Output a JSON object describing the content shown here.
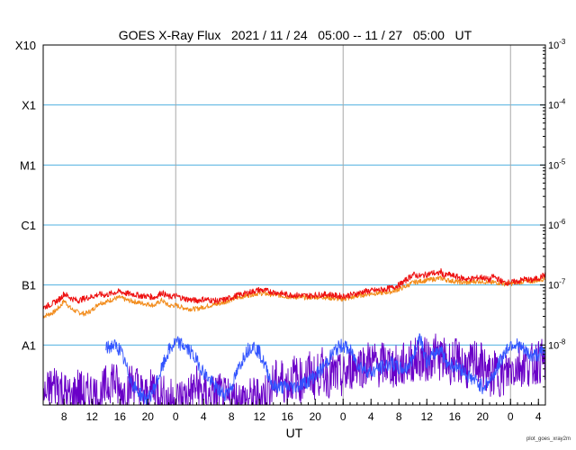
{
  "chart_data": {
    "type": "line",
    "title": "GOES X-Ray Flux   2021 / 11 / 24   05:00 -- 11 / 27   05:00   UT",
    "xlabel": "UT",
    "footer": "plot_goes_xray2m",
    "y_scale": "log",
    "ylim": [
      1e-09,
      0.001
    ],
    "xlim_hours": [
      0,
      72
    ],
    "grid": true,
    "flare_classes": [
      {
        "label": "X10",
        "value": 0.001
      },
      {
        "label": "X1",
        "value": 0.0001
      },
      {
        "label": "M1",
        "value": 1e-05
      },
      {
        "label": "C1",
        "value": 1e-06
      },
      {
        "label": "B1",
        "value": 1e-07
      },
      {
        "label": "A1",
        "value": 1e-08
      }
    ],
    "right_ticks": [
      {
        "base": "10",
        "exp": "-3",
        "value": 0.001
      },
      {
        "base": "10",
        "exp": "-4",
        "value": 0.0001
      },
      {
        "base": "10",
        "exp": "-5",
        "value": 1e-05
      },
      {
        "base": "10",
        "exp": "-6",
        "value": 1e-06
      },
      {
        "base": "10",
        "exp": "-7",
        "value": 1e-07
      },
      {
        "base": "10",
        "exp": "-8",
        "value": 1e-08
      }
    ],
    "x_ticks": [
      {
        "label": "8",
        "t": 3
      },
      {
        "label": "12",
        "t": 7
      },
      {
        "label": "16",
        "t": 11
      },
      {
        "label": "20",
        "t": 15
      },
      {
        "label": "0",
        "t": 19
      },
      {
        "label": "4",
        "t": 23
      },
      {
        "label": "8",
        "t": 27
      },
      {
        "label": "12",
        "t": 31
      },
      {
        "label": "16",
        "t": 35
      },
      {
        "label": "20",
        "t": 39
      },
      {
        "label": "0",
        "t": 43
      },
      {
        "label": "4",
        "t": 47
      },
      {
        "label": "8",
        "t": 51
      },
      {
        "label": "12",
        "t": 55
      },
      {
        "label": "16",
        "t": 59
      },
      {
        "label": "20",
        "t": 63
      },
      {
        "label": "0",
        "t": 67
      },
      {
        "label": "4",
        "t": 71
      }
    ],
    "day_boundaries": [
      19,
      43,
      67
    ],
    "colors": {
      "long_red": "#ee1111",
      "long_orange": "#f28c1c",
      "short_blue": "#3355ff",
      "short_purple": "#6a00c8",
      "grid_blue": "#4fb1e0",
      "day_line": "#a8a8a8"
    },
    "series": [
      {
        "color": "#ee1111",
        "points": [
          [
            0,
            4.2e-08
          ],
          [
            1.5,
            5e-08
          ],
          [
            2.5,
            6e-08
          ],
          [
            3,
            7.2e-08
          ],
          [
            4,
            6e-08
          ],
          [
            5,
            5.5e-08
          ],
          [
            6,
            6e-08
          ],
          [
            7,
            6.4e-08
          ],
          [
            8,
            7e-08
          ],
          [
            9,
            6.8e-08
          ],
          [
            10,
            7.4e-08
          ],
          [
            11,
            7.8e-08
          ],
          [
            12,
            7.2e-08
          ],
          [
            13,
            7e-08
          ],
          [
            14,
            6.6e-08
          ],
          [
            15,
            6.5e-08
          ],
          [
            16,
            6.2e-08
          ],
          [
            17,
            7.5e-08
          ],
          [
            18,
            6.3e-08
          ],
          [
            19,
            6.6e-08
          ],
          [
            20,
            6e-08
          ],
          [
            21,
            5.7e-08
          ],
          [
            22,
            5.5e-08
          ],
          [
            23,
            5.8e-08
          ],
          [
            24,
            5.6e-08
          ],
          [
            25,
            5.4e-08
          ],
          [
            26,
            5.7e-08
          ],
          [
            27,
            6.2e-08
          ],
          [
            28,
            6.8e-08
          ],
          [
            29,
            7.2e-08
          ],
          [
            30,
            7.8e-08
          ],
          [
            31,
            8.3e-08
          ],
          [
            32,
            8e-08
          ],
          [
            33,
            7.6e-08
          ],
          [
            34,
            7.3e-08
          ],
          [
            35,
            6.9e-08
          ],
          [
            36,
            6.8e-08
          ],
          [
            37,
            6.7e-08
          ],
          [
            38,
            6.6e-08
          ],
          [
            39,
            6.8e-08
          ],
          [
            40,
            6.9e-08
          ],
          [
            41,
            7e-08
          ],
          [
            42,
            6.6e-08
          ],
          [
            43,
            6.5e-08
          ],
          [
            44,
            6.8e-08
          ],
          [
            45,
            7.2e-08
          ],
          [
            46,
            7.8e-08
          ],
          [
            47,
            8e-08
          ],
          [
            48,
            8.2e-08
          ],
          [
            49,
            8.5e-08
          ],
          [
            50,
            9e-08
          ],
          [
            51,
            1e-07
          ],
          [
            52,
            1.2e-07
          ],
          [
            53,
            1.5e-07
          ],
          [
            54,
            1.4e-07
          ],
          [
            55,
            1.5e-07
          ],
          [
            56,
            1.6e-07
          ],
          [
            56.5,
            1.5e-07
          ],
          [
            57,
            1.7e-07
          ],
          [
            57.5,
            1.4e-07
          ],
          [
            58,
            1.5e-07
          ],
          [
            59,
            1.4e-07
          ],
          [
            60,
            1.3e-07
          ],
          [
            61,
            1.25e-07
          ],
          [
            62,
            1.3e-07
          ],
          [
            63,
            1.35e-07
          ],
          [
            64,
            1.2e-07
          ],
          [
            64.5,
            1.4e-07
          ],
          [
            65,
            1.3e-07
          ],
          [
            66,
            1.1e-07
          ],
          [
            67,
            1.1e-07
          ],
          [
            68,
            1.15e-07
          ],
          [
            69,
            1.25e-07
          ],
          [
            70,
            1.2e-07
          ],
          [
            71,
            1.3e-07
          ],
          [
            72,
            1.5e-07
          ]
        ]
      },
      {
        "color": "#f28c1c",
        "points": [
          [
            0,
            3e-08
          ],
          [
            1.5,
            3.5e-08
          ],
          [
            2.5,
            4.5e-08
          ],
          [
            3,
            5.5e-08
          ],
          [
            4,
            4e-08
          ],
          [
            5,
            3.5e-08
          ],
          [
            6,
            3.3e-08
          ],
          [
            7,
            3.8e-08
          ],
          [
            8,
            5e-08
          ],
          [
            9,
            5.2e-08
          ],
          [
            10,
            5.8e-08
          ],
          [
            11,
            6.2e-08
          ],
          [
            12,
            5.6e-08
          ],
          [
            13,
            5.3e-08
          ],
          [
            14,
            5e-08
          ],
          [
            15,
            4.8e-08
          ],
          [
            16,
            4.6e-08
          ],
          [
            17,
            5.6e-08
          ],
          [
            18,
            4.5e-08
          ],
          [
            19,
            4.6e-08
          ],
          [
            20,
            4.2e-08
          ],
          [
            21,
            4e-08
          ],
          [
            22,
            4e-08
          ],
          [
            23,
            4.3e-08
          ],
          [
            24,
            4.6e-08
          ],
          [
            25,
            4.8e-08
          ],
          [
            26,
            5.2e-08
          ],
          [
            27,
            5.7e-08
          ],
          [
            28,
            6.2e-08
          ],
          [
            29,
            6.6e-08
          ],
          [
            30,
            7e-08
          ],
          [
            31,
            7.3e-08
          ],
          [
            32,
            7.1e-08
          ],
          [
            33,
            6.9e-08
          ],
          [
            34,
            6.7e-08
          ],
          [
            35,
            6.4e-08
          ],
          [
            36,
            6.3e-08
          ],
          [
            37,
            6.2e-08
          ],
          [
            38,
            6.2e-08
          ],
          [
            39,
            6.3e-08
          ],
          [
            40,
            6.3e-08
          ],
          [
            41,
            6.1e-08
          ],
          [
            42,
            5.9e-08
          ],
          [
            43,
            5.8e-08
          ],
          [
            44,
            6.1e-08
          ],
          [
            45,
            6.5e-08
          ],
          [
            46,
            6.9e-08
          ],
          [
            47,
            7.2e-08
          ],
          [
            48,
            7.3e-08
          ],
          [
            49,
            7.5e-08
          ],
          [
            50,
            7.8e-08
          ],
          [
            51,
            8.5e-08
          ],
          [
            52,
            9.5e-08
          ],
          [
            53,
            1.1e-07
          ],
          [
            54,
            1.15e-07
          ],
          [
            55,
            1.2e-07
          ],
          [
            56,
            1.25e-07
          ],
          [
            57,
            1.3e-07
          ],
          [
            58,
            1.2e-07
          ],
          [
            59,
            1.15e-07
          ],
          [
            60,
            1.1e-07
          ],
          [
            61,
            1.1e-07
          ],
          [
            62,
            1.15e-07
          ],
          [
            63,
            1.15e-07
          ],
          [
            64,
            1.1e-07
          ],
          [
            65,
            1.1e-07
          ],
          [
            66,
            1.05e-07
          ],
          [
            67,
            1.05e-07
          ],
          [
            68,
            1.1e-07
          ],
          [
            69,
            1.15e-07
          ],
          [
            70,
            1.15e-07
          ],
          [
            71,
            1.2e-07
          ],
          [
            72,
            1.3e-07
          ]
        ]
      },
      {
        "color": "#3355ff",
        "points": [
          [
            9,
            8.5e-09
          ],
          [
            10,
            1e-08
          ],
          [
            11,
            8.5e-09
          ],
          [
            12,
            4e-09
          ],
          [
            13,
            2e-09
          ],
          [
            14,
            1.5e-09
          ],
          [
            15,
            1.2e-09
          ],
          [
            16,
            2e-09
          ],
          [
            17,
            4e-09
          ],
          [
            18,
            8e-09
          ],
          [
            19,
            1.1e-08
          ],
          [
            20,
            1e-08
          ],
          [
            21,
            8e-09
          ],
          [
            22,
            5.5e-09
          ],
          [
            23,
            3.5e-09
          ],
          [
            24,
            2.5e-09
          ],
          [
            25,
            1.8e-09
          ],
          [
            26,
            1.5e-09
          ],
          [
            27,
            2e-09
          ],
          [
            28,
            4e-09
          ],
          [
            29,
            7.5e-09
          ],
          [
            30,
            1e-08
          ],
          [
            31,
            7.5e-09
          ],
          [
            32,
            4e-09
          ],
          [
            33,
            2e-09
          ],
          [
            36,
            2e-09
          ],
          [
            38,
            2.5e-09
          ],
          [
            40,
            4e-09
          ],
          [
            41,
            6e-09
          ],
          [
            42,
            8.5e-09
          ],
          [
            43,
            1e-08
          ],
          [
            44,
            8e-09
          ],
          [
            45,
            5e-09
          ],
          [
            46,
            4e-09
          ],
          [
            47,
            3.5e-09
          ],
          [
            48,
            4e-09
          ],
          [
            49,
            4.5e-09
          ],
          [
            50,
            5e-09
          ],
          [
            51,
            4e-09
          ],
          [
            52,
            4e-09
          ],
          [
            53,
            6e-09
          ],
          [
            54,
            1.5e-08
          ],
          [
            55,
            5e-09
          ],
          [
            56,
            7e-09
          ],
          [
            57,
            9e-09
          ],
          [
            57.5,
            6e-09
          ],
          [
            58,
            5e-09
          ],
          [
            59,
            4.5e-09
          ],
          [
            60,
            4e-09
          ],
          [
            61,
            3e-09
          ],
          [
            62,
            2.5e-09
          ],
          [
            63,
            2e-09
          ],
          [
            64,
            2.5e-09
          ],
          [
            65,
            4e-09
          ],
          [
            66,
            7e-09
          ],
          [
            67,
            1.05e-08
          ],
          [
            68,
            1e-08
          ],
          [
            69,
            8e-09
          ],
          [
            70,
            6.5e-09
          ],
          [
            71,
            7e-09
          ],
          [
            72,
            8e-09
          ]
        ]
      },
      {
        "color": "#6a00c8",
        "points": [
          [
            0,
            1.3e-09
          ],
          [
            1,
            1.8e-09
          ],
          [
            2,
            2.4e-09
          ],
          [
            3,
            1.6e-09
          ],
          [
            4,
            1.2e-09
          ],
          [
            5,
            1.9e-09
          ],
          [
            6,
            1.3e-09
          ],
          [
            7,
            1.7e-09
          ],
          [
            8,
            1.2e-09
          ],
          [
            9,
            2e-09
          ],
          [
            10,
            3e-09
          ],
          [
            11,
            1.5e-09
          ],
          [
            12,
            1.8e-09
          ],
          [
            13,
            2.5e-09
          ],
          [
            14,
            1.6e-09
          ],
          [
            15,
            1.3e-09
          ],
          [
            16,
            2.2e-09
          ],
          [
            17,
            1.4e-09
          ],
          [
            18,
            1.2e-09
          ],
          [
            19,
            1.2e-09
          ],
          [
            20,
            1.3e-09
          ],
          [
            21,
            1.5e-09
          ],
          [
            22,
            2e-09
          ],
          [
            23,
            1.5e-09
          ],
          [
            24,
            1.3e-09
          ],
          [
            25,
            1.6e-09
          ],
          [
            26,
            1.2e-09
          ],
          [
            28,
            1.2e-09
          ],
          [
            30,
            1.2e-09
          ],
          [
            32,
            1.6e-09
          ],
          [
            33,
            2.2e-09
          ],
          [
            34,
            2.8e-09
          ],
          [
            35,
            2.2e-09
          ],
          [
            36,
            3e-09
          ],
          [
            37,
            2.5e-09
          ],
          [
            38,
            3.5e-09
          ],
          [
            39,
            2.8e-09
          ],
          [
            40,
            3.8e-09
          ],
          [
            41,
            3e-09
          ],
          [
            42,
            3.2e-09
          ],
          [
            43,
            2.8e-09
          ],
          [
            44,
            4e-09
          ],
          [
            45,
            5e-09
          ],
          [
            46,
            4.5e-09
          ],
          [
            47,
            5.5e-09
          ],
          [
            48,
            4.5e-09
          ],
          [
            49,
            5e-09
          ],
          [
            50,
            4.5e-09
          ],
          [
            51,
            4e-09
          ],
          [
            52,
            5e-09
          ],
          [
            53,
            5.5e-09
          ],
          [
            54,
            6e-09
          ],
          [
            55,
            5.5e-09
          ],
          [
            56,
            7e-09
          ],
          [
            57,
            6e-09
          ],
          [
            58,
            5e-09
          ],
          [
            59,
            5.5e-09
          ],
          [
            60,
            5e-09
          ],
          [
            61,
            4e-09
          ],
          [
            62,
            5.5e-09
          ],
          [
            63,
            4.5e-09
          ],
          [
            64,
            3e-09
          ],
          [
            65,
            3.5e-09
          ],
          [
            66,
            3e-09
          ],
          [
            67,
            4e-09
          ],
          [
            68,
            4.5e-09
          ],
          [
            69,
            5e-09
          ],
          [
            70,
            4.5e-09
          ],
          [
            71,
            5.5e-09
          ],
          [
            72,
            5e-09
          ]
        ]
      }
    ]
  }
}
